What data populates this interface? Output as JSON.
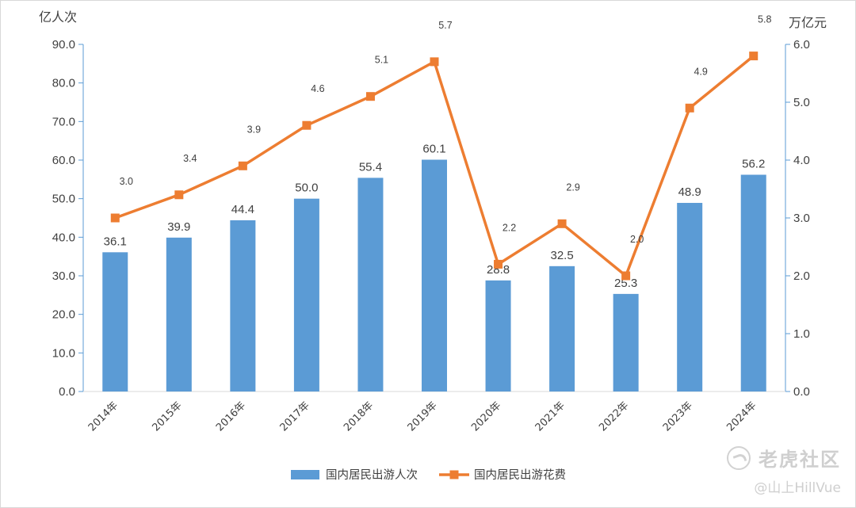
{
  "chart_data": {
    "type": "bar",
    "title": "",
    "categories": [
      "2014年",
      "2015年",
      "2016年",
      "2017年",
      "2018年",
      "2019年",
      "2020年",
      "2021年",
      "2022年",
      "2023年",
      "2024年"
    ],
    "series": [
      {
        "name": "国内居民出游人次",
        "type": "bar",
        "axis": "left",
        "color": "#5b9bd5",
        "values": [
          36.1,
          39.9,
          44.4,
          50.0,
          55.4,
          60.1,
          28.8,
          32.5,
          25.3,
          48.9,
          56.2
        ],
        "labels": [
          "36.1",
          "39.9",
          "44.4",
          "50.0",
          "55.4",
          "60.1",
          "28.8",
          "32.5",
          "25.3",
          "48.9",
          "56.2"
        ]
      },
      {
        "name": "国内居民出游花费",
        "type": "line",
        "axis": "right",
        "color": "#ed7d31",
        "marker": "square",
        "values": [
          3.0,
          3.4,
          3.9,
          4.6,
          5.1,
          5.7,
          2.2,
          2.9,
          2.0,
          4.9,
          5.8
        ],
        "labels": [
          "3.0",
          "3.4",
          "3.9",
          "4.6",
          "5.1",
          "5.7",
          "2.2",
          "2.9",
          "2.0",
          "4.9",
          "5.8"
        ]
      }
    ],
    "y_left": {
      "unit": "亿人次",
      "range": [
        0,
        90
      ],
      "ticks": [
        "0.0",
        "10.0",
        "20.0",
        "30.0",
        "40.0",
        "50.0",
        "60.0",
        "70.0",
        "80.0",
        "90.0"
      ]
    },
    "y_right": {
      "unit": "万亿元",
      "range": [
        0,
        6
      ],
      "ticks": [
        "0.0",
        "1.0",
        "2.0",
        "3.0",
        "4.0",
        "5.0",
        "6.0"
      ]
    },
    "grid": false,
    "legend": "bottom"
  },
  "watermark": {
    "brand": "老虎社区",
    "handle": "@山上HillVue"
  }
}
